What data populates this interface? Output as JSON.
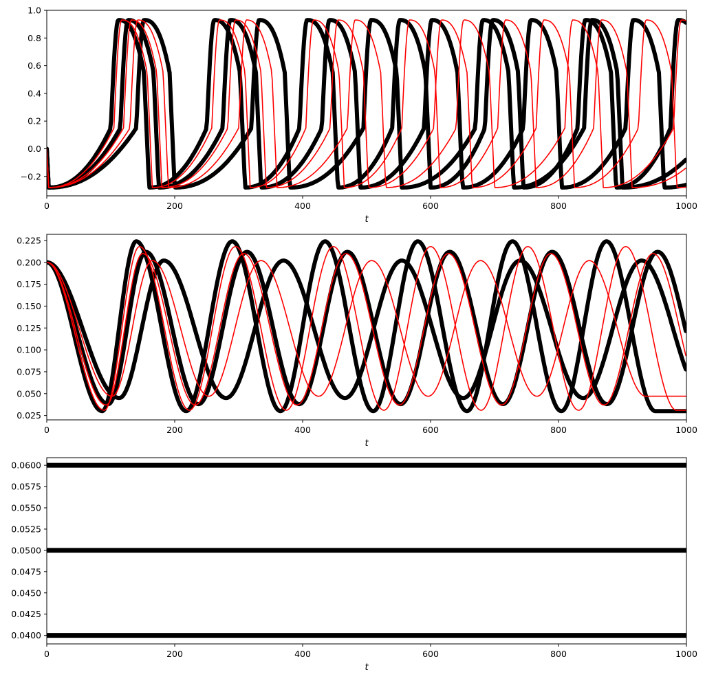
{
  "chart_data": [
    {
      "type": "line",
      "xlabel": "t",
      "xlim": [
        0,
        1000
      ],
      "ylim": [
        -0.34,
        1.0
      ],
      "xticks": [
        "0",
        "200",
        "400",
        "600",
        "800",
        "1000"
      ],
      "yticks": [
        "−0.2",
        "0.0",
        "0.2",
        "0.4",
        "0.6",
        "0.8",
        "1.0"
      ],
      "ytick_values": [
        -0.2,
        0.0,
        0.2,
        0.4,
        0.6,
        0.8,
        1.0
      ],
      "grid": false,
      "legend": "none",
      "series_style": {
        "black": "#000000",
        "red": "#ff0000"
      },
      "oscillation": {
        "min": -0.28,
        "max": 0.93,
        "initial": 0.0
      },
      "series": [
        {
          "color": "black",
          "width": 6,
          "first_spike": 100,
          "spike_times": [
            100,
            250,
            395,
            540,
            685,
            830,
            975
          ]
        },
        {
          "color": "black",
          "width": 6,
          "first_spike": 115,
          "spike_times": [
            115,
            275,
            430,
            590,
            745,
            905
          ]
        },
        {
          "color": "black",
          "width": 6,
          "first_spike": 140,
          "spike_times": [
            140,
            320,
            495,
            670,
            840
          ]
        },
        {
          "color": "red",
          "width": 1.6,
          "first_spike": 105,
          "spike_times": [
            105,
            258,
            405,
            555,
            705,
            855
          ]
        },
        {
          "color": "red",
          "width": 1.6,
          "first_spike": 120,
          "spike_times": [
            120,
            283,
            443,
            605,
            765,
            925
          ]
        },
        {
          "color": "red",
          "width": 1.6,
          "first_spike": 130,
          "spike_times": [
            130,
            300,
            470,
            640,
            810,
            980
          ]
        }
      ]
    },
    {
      "type": "line",
      "xlabel": "t",
      "xlim": [
        0,
        1000
      ],
      "ylim": [
        0.02,
        0.232
      ],
      "xticks": [
        "0",
        "200",
        "400",
        "600",
        "800",
        "1000"
      ],
      "yticks": [
        "0.025",
        "0.050",
        "0.075",
        "0.100",
        "0.125",
        "0.150",
        "0.175",
        "0.200",
        "0.225"
      ],
      "ytick_values": [
        0.025,
        0.05,
        0.075,
        0.1,
        0.125,
        0.15,
        0.175,
        0.2,
        0.225
      ],
      "grid": false,
      "legend": "none",
      "initial": 0.2,
      "series": [
        {
          "color": "black",
          "width": 6,
          "peak_times": [
            140,
            290,
            435,
            580,
            728,
            875
          ],
          "peak": 0.224,
          "trough": 0.03
        },
        {
          "color": "black",
          "width": 6,
          "peak_times": [
            155,
            313,
            470,
            630,
            790,
            955
          ],
          "peak": 0.212,
          "trough": 0.038
        },
        {
          "color": "black",
          "width": 6,
          "peak_times": [
            183,
            370,
            555,
            740,
            930
          ],
          "peak": 0.202,
          "trough": 0.045
        },
        {
          "color": "red",
          "width": 1.6,
          "peak_times": [
            145,
            295,
            448,
            600,
            752,
            905
          ],
          "peak": 0.218,
          "trough": 0.031
        },
        {
          "color": "red",
          "width": 1.6,
          "peak_times": [
            150,
            308,
            468,
            628,
            788,
            948
          ],
          "peak": 0.21,
          "trough": 0.037
        },
        {
          "color": "red",
          "width": 1.6,
          "peak_times": [
            165,
            335,
            508,
            678,
            848
          ],
          "peak": 0.202,
          "trough": 0.047
        }
      ]
    },
    {
      "type": "line",
      "xlabel": "t",
      "xlim": [
        0,
        1000
      ],
      "ylim": [
        0.039,
        0.0609
      ],
      "xticks": [
        "0",
        "200",
        "400",
        "600",
        "800",
        "1000"
      ],
      "yticks": [
        "0.0400",
        "0.0425",
        "0.0450",
        "0.0475",
        "0.0500",
        "0.0525",
        "0.0550",
        "0.0575",
        "0.0600"
      ],
      "ytick_values": [
        0.04,
        0.0425,
        0.045,
        0.0475,
        0.05,
        0.0525,
        0.055,
        0.0575,
        0.06
      ],
      "grid": false,
      "legend": "none",
      "series": [
        {
          "color": "black",
          "width": 7,
          "y": 0.06
        },
        {
          "color": "black",
          "width": 7,
          "y": 0.05
        },
        {
          "color": "black",
          "width": 7,
          "y": 0.04
        }
      ]
    }
  ]
}
